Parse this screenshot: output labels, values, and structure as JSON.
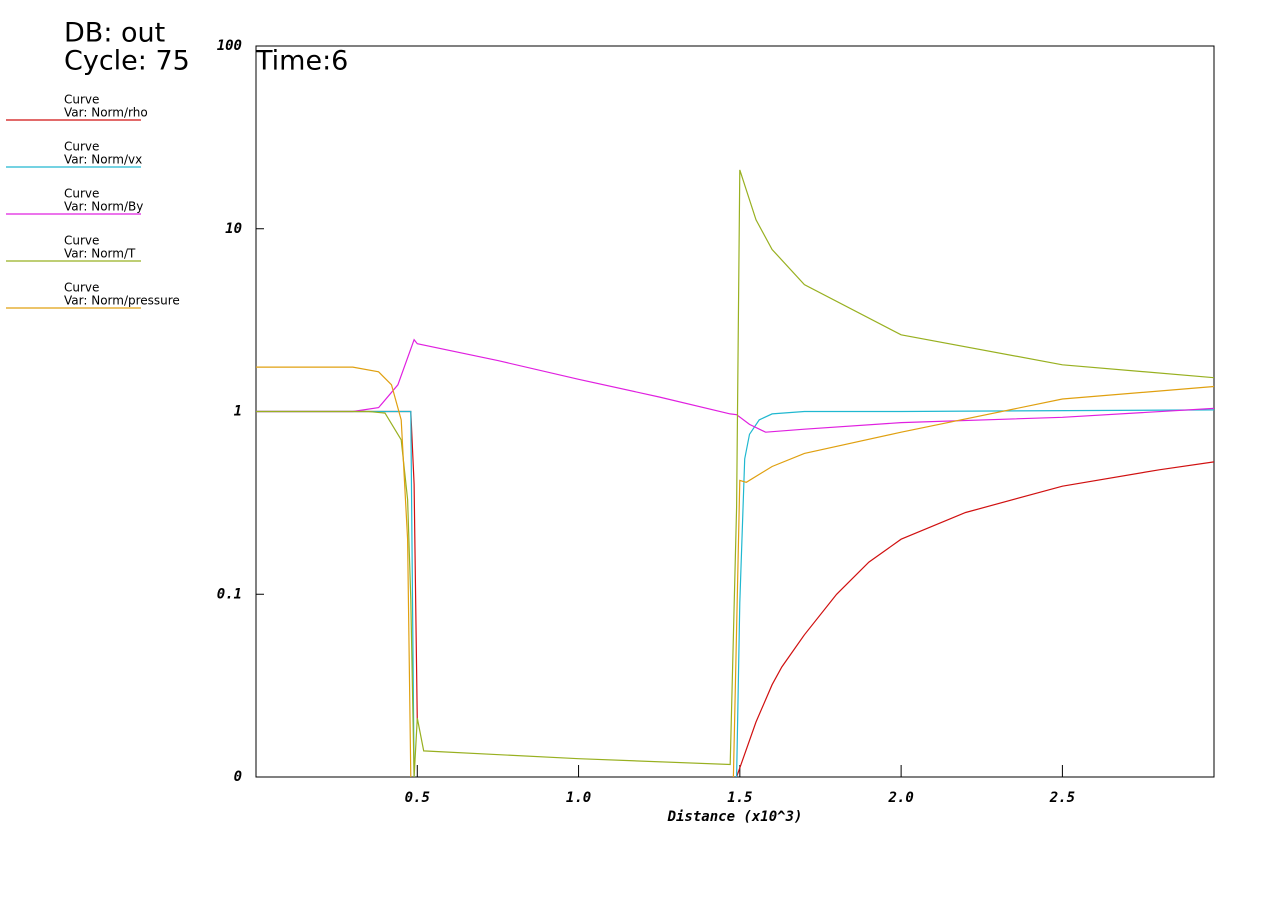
{
  "chart_data": {
    "type": "line",
    "annotations": [
      "DB: out",
      "Cycle: 75",
      "Time:6"
    ],
    "legend_heading": "Curve",
    "xlabel": "Distance (x10^3)",
    "xlim": [
      0,
      2.97
    ],
    "xticks": [
      0.5,
      {
        "value": 1,
        "label": "1.0"
      },
      1.5,
      {
        "value": 2,
        "label": "2.0"
      },
      2.5
    ],
    "ylim": [
      0.01,
      100
    ],
    "yticks": [
      {
        "value": 0.01,
        "label": "0"
      },
      0.1,
      1,
      10,
      100
    ],
    "log_y": true,
    "legend": "left",
    "series": [
      {
        "name": "Var: Norm/rho",
        "color": "#d01010",
        "x": [
          0,
          0.3,
          0.48,
          0.49,
          0.5,
          1.0,
          1.49,
          1.55,
          1.6,
          1.63,
          1.7,
          1.8,
          1.9,
          2.0,
          2.2,
          2.5,
          2.8,
          2.97
        ],
        "values": [
          1,
          1,
          1,
          0.4,
          0.02,
          null,
          0.01,
          0.02,
          0.032,
          0.04,
          0.06,
          0.1,
          0.15,
          0.2,
          0.28,
          0.39,
          0.48,
          0.53
        ]
      },
      {
        "name": "Var: Norm/vx",
        "color": "#20b8d0",
        "x": [
          0,
          0.45,
          0.48,
          0.49,
          1.0,
          1.49,
          1.5,
          1.515,
          1.53,
          1.56,
          1.6,
          1.7,
          2.0,
          2.97
        ],
        "values": [
          1,
          1,
          1,
          0.01,
          null,
          0.01,
          0.09,
          0.55,
          0.75,
          0.9,
          0.97,
          1.0,
          1.0,
          1.02
        ]
      },
      {
        "name": "Var: Norm/By",
        "color": "#e020e0",
        "x": [
          0,
          0.3,
          0.38,
          0.44,
          0.49,
          0.5,
          0.75,
          1.0,
          1.25,
          1.47,
          1.49,
          1.53,
          1.58,
          1.7,
          2.0,
          2.5,
          2.97
        ],
        "values": [
          1,
          1,
          1.05,
          1.4,
          2.47,
          2.35,
          1.9,
          1.5,
          1.2,
          0.97,
          0.96,
          0.85,
          0.77,
          0.8,
          0.87,
          0.93,
          1.04
        ]
      },
      {
        "name": "Var: Norm/T",
        "color": "#98b020",
        "x": [
          0,
          0.35,
          0.4,
          0.45,
          0.47,
          0.48,
          0.49,
          0.5,
          0.52,
          1.0,
          1.47,
          1.49,
          1.5,
          1.55,
          1.6,
          1.7,
          2.0,
          2.5,
          2.97
        ],
        "values": [
          1,
          1,
          0.98,
          0.7,
          0.33,
          0.094,
          0.01,
          0.021,
          0.0139,
          0.0126,
          0.0117,
          0.3,
          21,
          11.2,
          7.7,
          4.95,
          2.63,
          1.8,
          1.53
        ]
      },
      {
        "name": "Var: Norm/pressure",
        "color": "#e0a010",
        "x": [
          0,
          0.3,
          0.38,
          0.42,
          0.45,
          0.47,
          0.48,
          1.0,
          1.48,
          1.5,
          1.52,
          1.6,
          1.7,
          2.0,
          2.5,
          2.97
        ],
        "values": [
          1.75,
          1.75,
          1.65,
          1.4,
          0.9,
          0.2,
          0.01,
          null,
          0.01,
          0.42,
          0.41,
          0.5,
          0.59,
          0.77,
          1.17,
          1.37
        ]
      }
    ]
  }
}
